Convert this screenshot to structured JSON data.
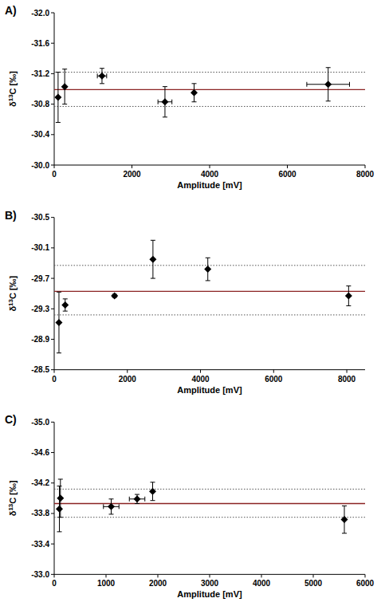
{
  "chart_data": [
    {
      "type": "scatter",
      "title": "A)",
      "x_label": "Amplitude [mV]",
      "y_label": "δ13C [‰]",
      "xlim": [
        0,
        8000
      ],
      "xticks": [
        0,
        2000,
        4000,
        6000,
        8000
      ],
      "ylim": [
        -30,
        -32
      ],
      "yticks": [
        {
          "value": -32,
          "label": "-32.0"
        },
        {
          "value": -31.6,
          "label": "-31.6"
        },
        {
          "value": -31.2,
          "label": "-31.2"
        },
        {
          "value": -30.8,
          "label": "-30.8"
        },
        {
          "value": -30.4,
          "label": "-30.4"
        },
        {
          "value": -30,
          "label": "-30.0"
        }
      ],
      "mean_line": -30.99,
      "limit_lines": [
        -31.22,
        -30.77
      ],
      "series": [
        {
          "marker": "diamond",
          "color": "#000000",
          "x": [
            100,
            270,
            1230,
            2850,
            3600,
            7050
          ],
          "values": [
            -30.89,
            -31.03,
            -31.17,
            -30.83,
            -30.95,
            -31.06
          ],
          "x_errors": [
            0,
            0,
            120,
            180,
            0,
            550
          ],
          "errors": [
            0.33,
            0.23,
            0.1,
            0.2,
            0.12,
            0.22
          ]
        }
      ]
    },
    {
      "type": "scatter",
      "title": "B)",
      "x_label": "Amplitude [mV]",
      "y_label": "δ13C [‰]",
      "xlim": [
        0,
        8500
      ],
      "xticks": [
        0,
        2000,
        4000,
        6000,
        8000
      ],
      "ylim": [
        -28.5,
        -30.5
      ],
      "yticks": [
        {
          "value": -30.5,
          "label": "-30.5"
        },
        {
          "value": -30.1,
          "label": "-30.1"
        },
        {
          "value": -29.7,
          "label": "-29.7"
        },
        {
          "value": -29.3,
          "label": "-29.3"
        },
        {
          "value": -28.9,
          "label": "-28.9"
        },
        {
          "value": -28.5,
          "label": "-28.5"
        }
      ],
      "mean_line": -29.53,
      "limit_lines": [
        -29.87,
        -29.22
      ],
      "series": [
        {
          "marker": "diamond",
          "color": "#000000",
          "x": [
            130,
            300,
            1650,
            2700,
            4200,
            8050
          ],
          "values": [
            -29.12,
            -29.35,
            -29.47,
            -29.95,
            -29.82,
            -29.47
          ],
          "x_errors": [
            0,
            0,
            0,
            0,
            0,
            0
          ],
          "errors": [
            0.4,
            0.08,
            0.02,
            0.25,
            0.15,
            0.13
          ]
        }
      ]
    },
    {
      "type": "scatter",
      "title": "C)",
      "x_label": "Amplitude [mV]",
      "y_label": "δ13C [‰]",
      "xlim": [
        0,
        6000
      ],
      "xticks": [
        0,
        1000,
        2000,
        3000,
        4000,
        5000,
        6000
      ],
      "ylim": [
        -33,
        -35
      ],
      "yticks": [
        {
          "value": -35,
          "label": "-35.0"
        },
        {
          "value": -34.6,
          "label": "-34.6"
        },
        {
          "value": -34.2,
          "label": "-34.2"
        },
        {
          "value": -33.8,
          "label": "-33.8"
        },
        {
          "value": -33.4,
          "label": "-33.4"
        },
        {
          "value": -33,
          "label": "-33.0"
        }
      ],
      "mean_line": -33.93,
      "limit_lines": [
        -34.12,
        -33.75
      ],
      "series": [
        {
          "marker": "diamond",
          "color": "#000000",
          "x": [
            100,
            120,
            1100,
            1600,
            1900,
            5600
          ],
          "values": [
            -33.86,
            -34.0,
            -33.89,
            -33.99,
            -34.09,
            -33.72
          ],
          "x_errors": [
            0,
            0,
            150,
            150,
            0,
            0
          ],
          "errors": [
            0.3,
            0.25,
            0.1,
            0.06,
            0.12,
            0.18
          ]
        }
      ]
    }
  ]
}
